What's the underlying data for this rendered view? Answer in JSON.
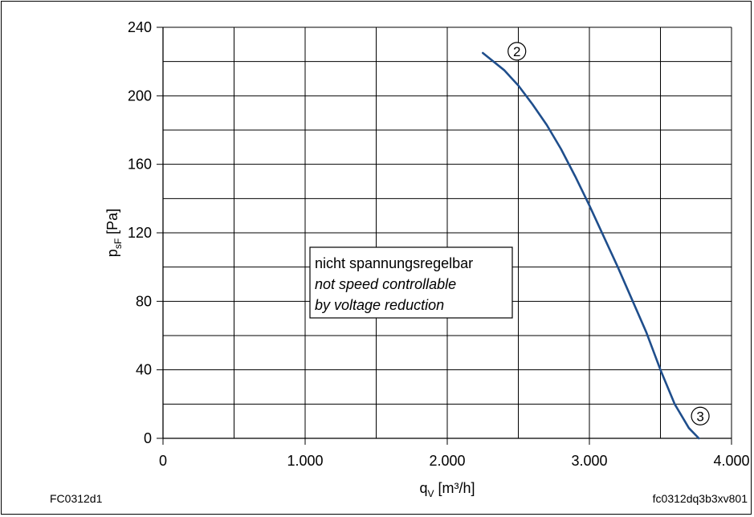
{
  "chart_data": {
    "type": "line",
    "xlabel_main": "q",
    "xlabel_sub": "V",
    "xlabel_unit": " [m³/h]",
    "ylabel_main": "p",
    "ylabel_sub": "sF",
    "ylabel_unit": " [Pa]",
    "xlim": [
      0,
      4000
    ],
    "ylim": [
      0,
      240
    ],
    "x_ticks": [
      0,
      1000,
      2000,
      3000,
      4000
    ],
    "x_tick_labels": [
      "0",
      "1.000",
      "2.000",
      "3.000",
      "4.000"
    ],
    "y_ticks": [
      0,
      40,
      80,
      120,
      160,
      200,
      240
    ],
    "y_tick_labels": [
      "0",
      "40",
      "80",
      "120",
      "160",
      "200",
      "240"
    ],
    "grid": true,
    "series": [
      {
        "color": "#1f4e8c",
        "x": [
          2250,
          2400,
          2500,
          2600,
          2700,
          2800,
          2900,
          3000,
          3100,
          3200,
          3300,
          3400,
          3500,
          3600,
          3700,
          3770
        ],
        "y": [
          225,
          215,
          206,
          195,
          183,
          169,
          153,
          136,
          118,
          100,
          81,
          62,
          40,
          20,
          6,
          0
        ]
      }
    ],
    "markers": [
      {
        "label": "2",
        "x": 2490,
        "y": 226
      },
      {
        "label": "3",
        "x": 3780,
        "y": 13
      }
    ],
    "annotation": {
      "lines": [
        "nicht spannungsregelbar",
        "not speed controllable",
        "by voltage reduction"
      ]
    }
  },
  "footer": {
    "left": "FC0312d1",
    "right": "fc0312dq3b3xv801"
  }
}
